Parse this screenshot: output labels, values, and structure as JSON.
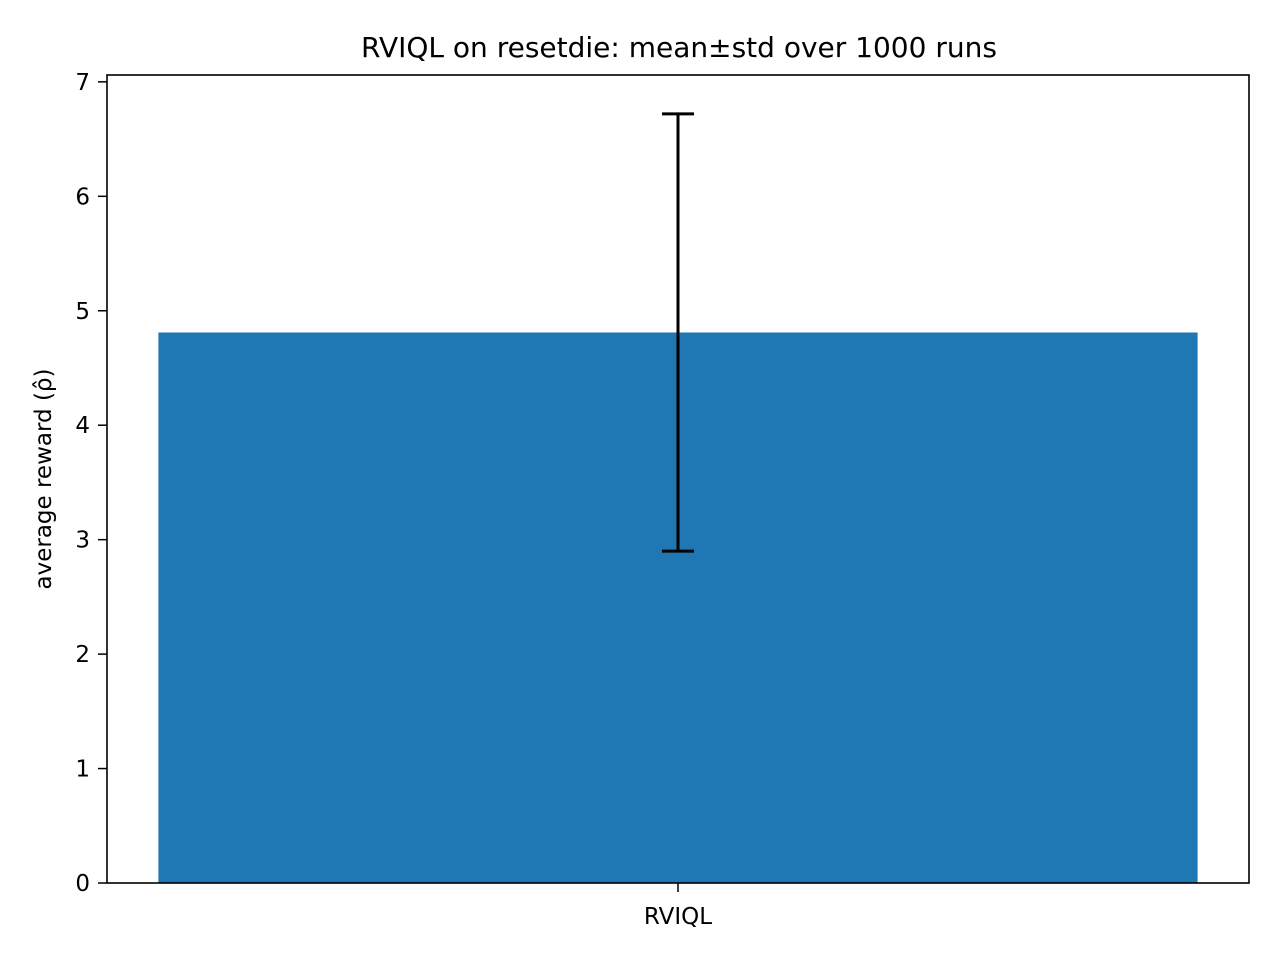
{
  "chart_data": {
    "type": "bar",
    "title": "RVIQL on resetdie: mean±std over 1000 runs",
    "xlabel": "",
    "ylabel": "average reward (ρ̂)",
    "categories": [
      "RVIQL"
    ],
    "values": [
      4.81
    ],
    "error": [
      1.91
    ],
    "ylim": [
      0,
      7.06
    ],
    "yticks": [
      0,
      1,
      2,
      3,
      4,
      5,
      6,
      7
    ],
    "grid": false,
    "legend": "none",
    "bar_color": "#1f77b4",
    "error_color": "#000000"
  }
}
